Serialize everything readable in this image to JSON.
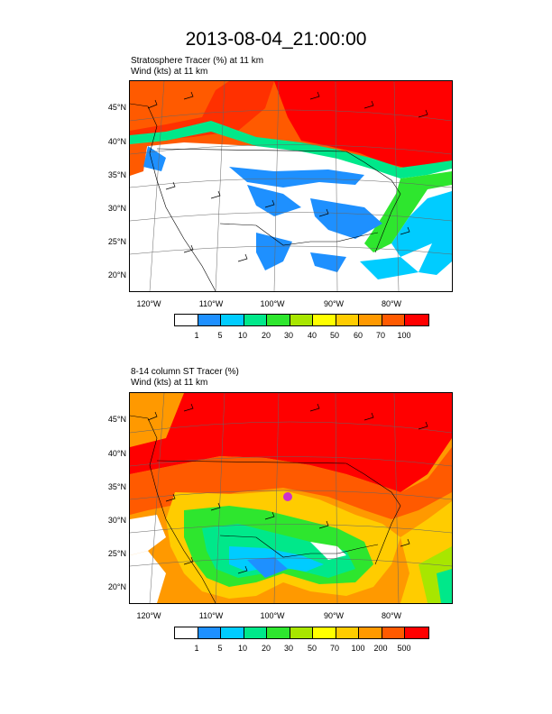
{
  "title": "2013-08-04_21:00:00",
  "panel1": {
    "line1": "Stratosphere Tracer   (%)     at   11 km",
    "line2": "Wind   (kts)     at   11 km",
    "lat_labels": [
      "45°N",
      "40°N",
      "35°N",
      "30°N",
      "25°N",
      "20°N"
    ],
    "lon_labels": [
      "120°W",
      "110°W",
      "100°W",
      "90°W",
      "80°W"
    ],
    "colorbar_labels": [
      "1",
      "5",
      "10",
      "20",
      "30",
      "40",
      "50",
      "60",
      "70",
      "100"
    ]
  },
  "panel2": {
    "line1": "8-14 column ST Tracer   (%)",
    "line2": "Wind   (kts)     at   11 km",
    "lat_labels": [
      "45°N",
      "40°N",
      "35°N",
      "30°N",
      "25°N",
      "20°N"
    ],
    "lon_labels": [
      "120°W",
      "110°W",
      "100°W",
      "90°W",
      "80°W"
    ],
    "colorbar_labels": [
      "1",
      "5",
      "10",
      "20",
      "30",
      "50",
      "70",
      "100",
      "200",
      "500"
    ]
  },
  "colors": [
    "#ffffff",
    "#1e90ff",
    "#00ccff",
    "#00e88a",
    "#2ee62e",
    "#a8e600",
    "#ffff00",
    "#ffcc00",
    "#ff9900",
    "#ff5a00",
    "#ff0000"
  ]
}
